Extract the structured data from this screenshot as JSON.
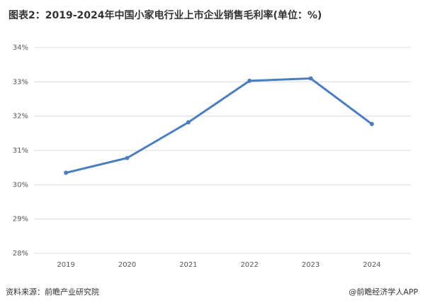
{
  "chart_data": {
    "type": "line",
    "title": "图表2：2019-2024年中国小家电行业上市企业销售毛利率(单位：%)",
    "categories": [
      "2019",
      "2020",
      "2021",
      "2022",
      "2023",
      "2024"
    ],
    "series": [
      {
        "name": "销售毛利率",
        "color": "#4a7ebf",
        "values": [
          30.35,
          30.78,
          31.82,
          33.03,
          33.1,
          31.77
        ]
      }
    ],
    "ylim": [
      28,
      34
    ],
    "yticks": [
      {
        "value": 28,
        "label": "28%"
      },
      {
        "value": 29,
        "label": "29%"
      },
      {
        "value": 30,
        "label": "30%"
      },
      {
        "value": 31,
        "label": "31%"
      },
      {
        "value": 32,
        "label": "32%"
      },
      {
        "value": 33,
        "label": "33%"
      },
      {
        "value": 34,
        "label": "34%"
      }
    ],
    "grid": true,
    "source": "资料来源：前瞻产业研究院",
    "credit": "@前瞻经济学人APP"
  }
}
